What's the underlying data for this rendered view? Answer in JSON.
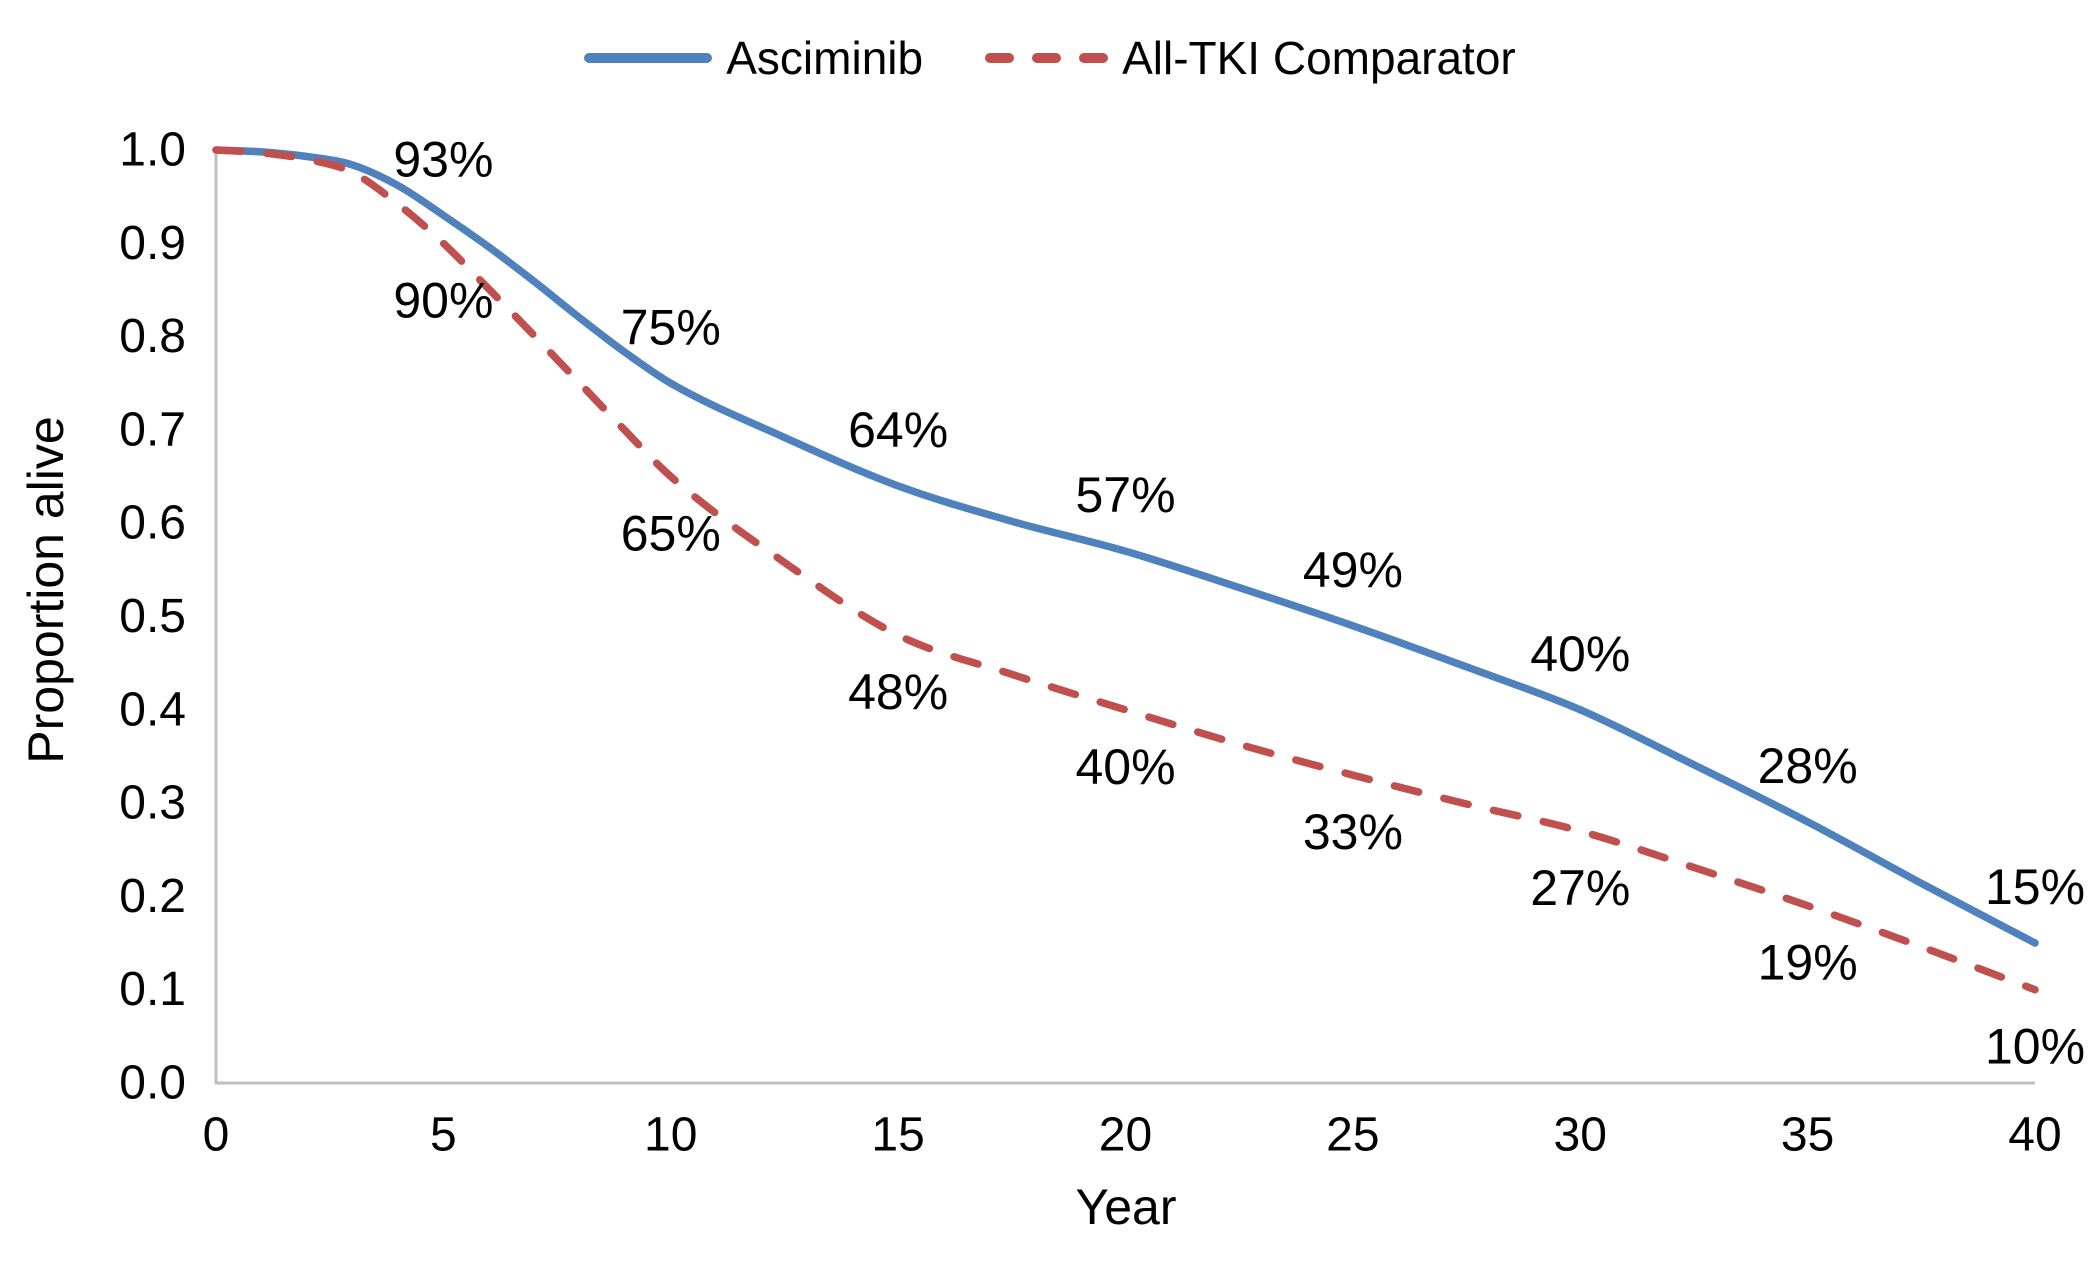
{
  "legend": {
    "items": [
      {
        "label": "Asciminib",
        "color": "#4F81BD",
        "style": "solid"
      },
      {
        "label": "All-TKI Comparator",
        "color": "#C0504D",
        "style": "dashed"
      }
    ]
  },
  "chart_data": {
    "type": "line",
    "title": "",
    "xlabel": "Year",
    "ylabel": "Proportion alive",
    "xlim": [
      0,
      40
    ],
    "ylim": [
      0.0,
      1.0
    ],
    "x_ticks": [
      "0",
      "5",
      "10",
      "15",
      "20",
      "25",
      "30",
      "35",
      "40"
    ],
    "y_ticks": [
      "0.0",
      "0.1",
      "0.2",
      "0.3",
      "0.4",
      "0.5",
      "0.6",
      "0.7",
      "0.8",
      "0.9",
      "1.0"
    ],
    "grid": false,
    "legend_position": "top",
    "axis_color": "#BFBFBF",
    "series": [
      {
        "name": "Asciminib",
        "color": "#4F81BD",
        "line_style": "solid",
        "label_offset": [
          0,
          -56
        ],
        "annotated_points": [
          {
            "year": 5,
            "value": 0.93,
            "label": "93%"
          },
          {
            "year": 10,
            "value": 0.75,
            "label": "75%"
          },
          {
            "year": 15,
            "value": 0.64,
            "label": "64%"
          },
          {
            "year": 20,
            "value": 0.57,
            "label": "57%"
          },
          {
            "year": 25,
            "value": 0.49,
            "label": "49%"
          },
          {
            "year": 30,
            "value": 0.4,
            "label": "40%"
          },
          {
            "year": 35,
            "value": 0.28,
            "label": "28%"
          },
          {
            "year": 40,
            "value": 0.15,
            "label": "15%"
          }
        ],
        "curve_points": [
          [
            0,
            1.0
          ],
          [
            1,
            0.998
          ],
          [
            2,
            0.993
          ],
          [
            3,
            0.984
          ],
          [
            4,
            0.962
          ],
          [
            5,
            0.93
          ],
          [
            6,
            0.896
          ],
          [
            7,
            0.859
          ],
          [
            8,
            0.82
          ],
          [
            9,
            0.783
          ],
          [
            10,
            0.75
          ],
          [
            12.5,
            0.692
          ],
          [
            15,
            0.64
          ],
          [
            17.5,
            0.602
          ],
          [
            20,
            0.57
          ],
          [
            22.5,
            0.531
          ],
          [
            25,
            0.49
          ],
          [
            27.5,
            0.446
          ],
          [
            30,
            0.4
          ],
          [
            32.5,
            0.341
          ],
          [
            35,
            0.28
          ],
          [
            37.5,
            0.214
          ],
          [
            40,
            0.15
          ]
        ]
      },
      {
        "name": "All-TKI Comparator",
        "color": "#C0504D",
        "line_style": "dashed",
        "label_offset": [
          0,
          57
        ],
        "annotated_points": [
          {
            "year": 5,
            "value": 0.9,
            "label": "90%"
          },
          {
            "year": 10,
            "value": 0.65,
            "label": "65%"
          },
          {
            "year": 15,
            "value": 0.48,
            "label": "48%"
          },
          {
            "year": 20,
            "value": 0.4,
            "label": "40%"
          },
          {
            "year": 25,
            "value": 0.33,
            "label": "33%"
          },
          {
            "year": 30,
            "value": 0.27,
            "label": "27%"
          },
          {
            "year": 35,
            "value": 0.19,
            "label": "19%"
          },
          {
            "year": 40,
            "value": 0.1,
            "label": "10%"
          }
        ],
        "curve_points": [
          [
            0,
            1.0
          ],
          [
            1,
            0.997
          ],
          [
            2,
            0.99
          ],
          [
            3,
            0.976
          ],
          [
            4,
            0.942
          ],
          [
            5,
            0.9
          ],
          [
            6,
            0.851
          ],
          [
            7,
            0.801
          ],
          [
            8,
            0.75
          ],
          [
            9,
            0.699
          ],
          [
            10,
            0.65
          ],
          [
            12.5,
            0.558
          ],
          [
            15,
            0.48
          ],
          [
            17.5,
            0.438
          ],
          [
            20,
            0.4
          ],
          [
            22.5,
            0.363
          ],
          [
            25,
            0.33
          ],
          [
            27.5,
            0.299
          ],
          [
            30,
            0.27
          ],
          [
            32.5,
            0.231
          ],
          [
            35,
            0.19
          ],
          [
            37.5,
            0.146
          ],
          [
            40,
            0.1
          ]
        ]
      }
    ]
  }
}
